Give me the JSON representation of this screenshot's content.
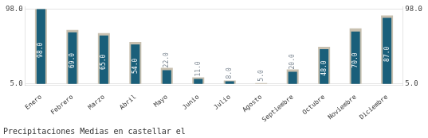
{
  "chart_data": {
    "type": "bar",
    "title": "Precipitaciones Medias en castellar el",
    "categories": [
      "Enero",
      "Febrero",
      "Marzo",
      "Abril",
      "Mayo",
      "Junio",
      "Julio",
      "Agosto",
      "Septiembre",
      "Octubre",
      "Noviembre",
      "Diciembre"
    ],
    "series": [
      {
        "color": "#c8c0b0",
        "values": [
          98.0,
          72.0,
          68.0,
          57.0,
          25.0,
          13.0,
          9.0,
          6.0,
          23.0,
          51.0,
          74.0,
          90.0
        ]
      },
      {
        "color": "#1a5f7a",
        "values": [
          98.0,
          69.0,
          65.0,
          54.0,
          22.0,
          11.0,
          8.0,
          5.0,
          20.0,
          48.0,
          70.0,
          87.0
        ],
        "value_labels": [
          "98.0",
          "69.0",
          "65.0",
          "54.0",
          "22.0",
          "11.0",
          "8.0",
          "5.0",
          "20.0",
          "48.0",
          "70.0",
          "87.0"
        ]
      }
    ],
    "data_labels": true,
    "ylim": [
      3,
      101
    ],
    "yticks": [
      {
        "value": 5,
        "label": "5.0"
      },
      {
        "value": 98,
        "label": "98.0"
      }
    ],
    "y2lim": [
      3,
      101
    ],
    "y2ticks": [
      {
        "value": 5,
        "label": "5.0"
      },
      {
        "value": 98,
        "label": "98.0"
      }
    ],
    "grid": true
  }
}
